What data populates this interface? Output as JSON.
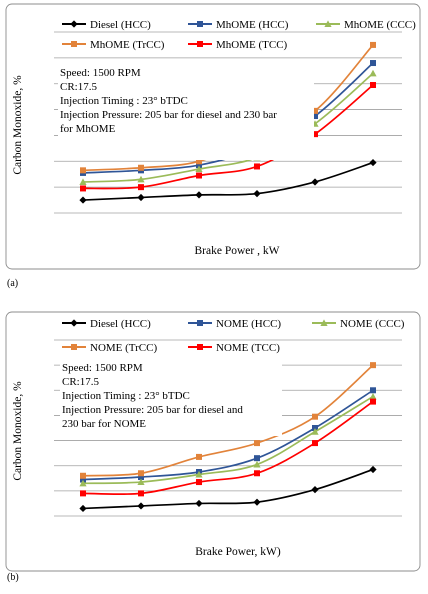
{
  "chart_data": [
    {
      "type": "line",
      "panel_label": "(a)",
      "title": "",
      "xlabel": "Brake Power , kW",
      "ylabel": "Carbon Monoxide, %",
      "ylim": [
        0,
        7
      ],
      "grid": true,
      "legend_position": "top",
      "x": [
        1,
        2,
        3,
        4,
        5,
        6
      ],
      "series": [
        {
          "name": "Diesel (HCC)",
          "color": "#000000",
          "marker": "diamond",
          "values": [
            0.5,
            0.6,
            0.7,
            0.75,
            1.2,
            1.95
          ]
        },
        {
          "name": "MhOME (HCC)",
          "color": "#2f5597",
          "marker": "square",
          "values": [
            1.55,
            1.65,
            1.85,
            2.5,
            3.75,
            5.8
          ]
        },
        {
          "name": "MhOME  (CCC)",
          "color": "#9bbb59",
          "marker": "triangle",
          "values": [
            1.2,
            1.3,
            1.7,
            2.15,
            3.45,
            5.4
          ]
        },
        {
          "name": "MhOME  (TrCC)",
          "color": "#e2833a",
          "marker": "square",
          "values": [
            1.65,
            1.75,
            2.0,
            2.95,
            3.95,
            6.5
          ]
        },
        {
          "name": "MhOME  (TCC)",
          "color": "#ff0000",
          "marker": "square",
          "values": [
            0.95,
            1.0,
            1.45,
            1.8,
            3.05,
            4.95
          ]
        }
      ],
      "annotation": [
        "Speed: 1500 RPM",
        "CR:17.5",
        "Injection Timing : 23° bTDC",
        "Injection Pressure: 205 bar for diesel and 230 bar",
        "for MhOME"
      ]
    },
    {
      "type": "line",
      "panel_label": "(b)",
      "title": "",
      "xlabel": "Brake Power, kW)",
      "ylabel": "Carbon Monoxide, %",
      "ylim": [
        0,
        7
      ],
      "grid": true,
      "legend_position": "top",
      "x": [
        1,
        2,
        3,
        4,
        5,
        6
      ],
      "series": [
        {
          "name": "Diesel (HCC)",
          "color": "#000000",
          "marker": "diamond",
          "values": [
            0.3,
            0.4,
            0.5,
            0.55,
            1.05,
            1.85
          ]
        },
        {
          "name": "NOME (HCC)",
          "color": "#2f5597",
          "marker": "square",
          "values": [
            1.45,
            1.55,
            1.75,
            2.3,
            3.5,
            5.0
          ]
        },
        {
          "name": "NOME  (CCC)",
          "color": "#9bbb59",
          "marker": "triangle",
          "values": [
            1.3,
            1.35,
            1.65,
            2.05,
            3.35,
            4.75
          ]
        },
        {
          "name": "NOME (TrCC)",
          "color": "#e2833a",
          "marker": "square",
          "values": [
            1.6,
            1.7,
            2.35,
            2.9,
            3.95,
            6.0
          ]
        },
        {
          "name": "NOME (TCC)",
          "color": "#ff0000",
          "marker": "square",
          "values": [
            0.9,
            0.9,
            1.35,
            1.7,
            2.9,
            4.55
          ]
        }
      ],
      "annotation": [
        "Speed: 1500 RPM",
        "CR:17.5",
        "Injection Timing : 23° bTDC",
        "Injection Pressure: 205 bar for diesel and",
        "230 bar  for NOME"
      ]
    }
  ]
}
